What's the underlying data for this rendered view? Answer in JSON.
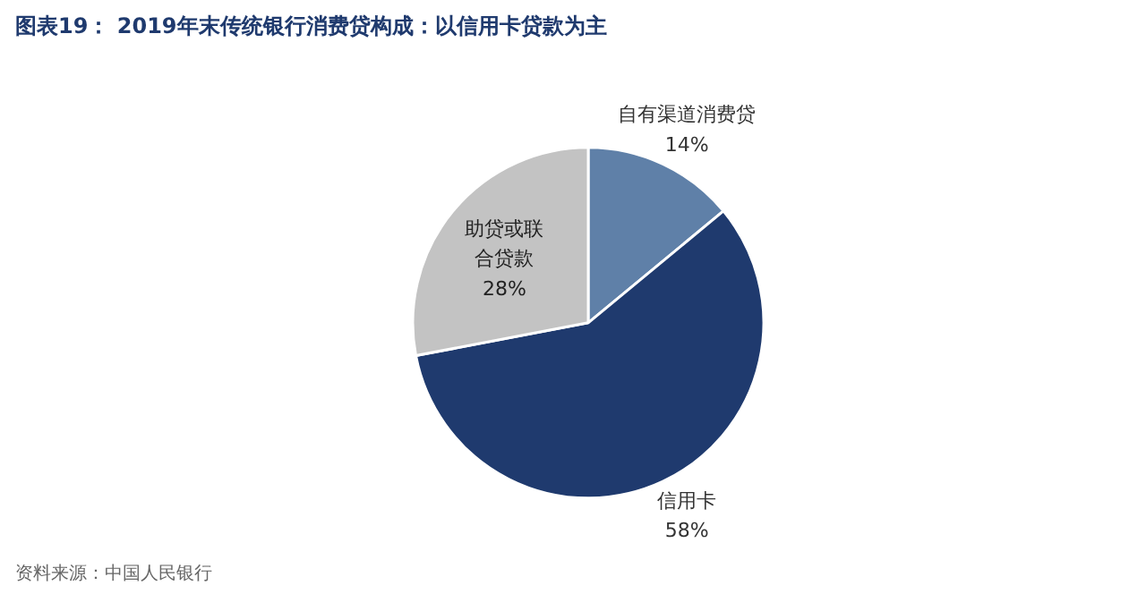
{
  "chart_data": {
    "type": "pie",
    "title": "图表19：  2019年末传统银行消费贷构成：以信用卡贷款为主",
    "categories": [
      "自有渠道消费贷",
      "信用卡",
      "助贷或联合贷款"
    ],
    "values": [
      14,
      58,
      28
    ],
    "colors": [
      "#5f80a8",
      "#1f3a6e",
      "#c3c3c3"
    ],
    "value_labels": [
      "14%",
      "58%",
      "28%"
    ],
    "annotations": [
      "资料来源：中国人民银行"
    ]
  }
}
